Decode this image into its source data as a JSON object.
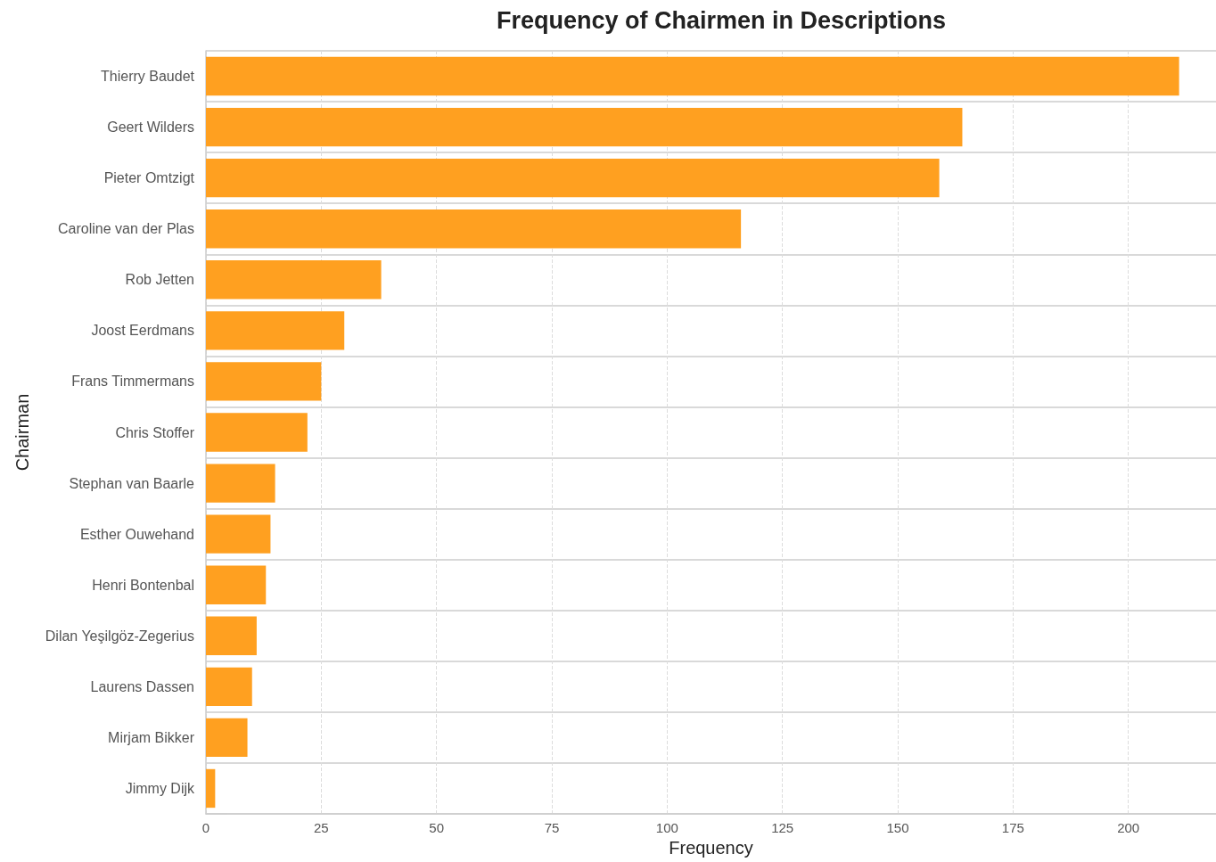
{
  "chart_data": {
    "type": "bar",
    "orientation": "horizontal",
    "title": "Frequency of Chairmen in Descriptions",
    "xlabel": "Frequency",
    "ylabel": "Chairman",
    "categories": [
      "Thierry Baudet",
      "Geert Wilders",
      "Pieter Omtzigt",
      "Caroline van der Plas",
      "Rob Jetten",
      "Joost Eerdmans",
      "Frans Timmermans",
      "Chris Stoffer",
      "Stephan van Baarle",
      "Esther Ouwehand",
      "Henri Bontenbal",
      "Dilan Yeşilgöz-Zegerius",
      "Laurens Dassen",
      "Mirjam Bikker",
      "Jimmy Dijk"
    ],
    "values": [
      211,
      164,
      159,
      116,
      38,
      30,
      25,
      22,
      15,
      14,
      13,
      11,
      10,
      9,
      2
    ],
    "color": "#ffa020",
    "xlim": [
      0,
      219
    ],
    "xticks": [
      0,
      25,
      50,
      75,
      100,
      125,
      150,
      175,
      200
    ],
    "grid": true
  }
}
